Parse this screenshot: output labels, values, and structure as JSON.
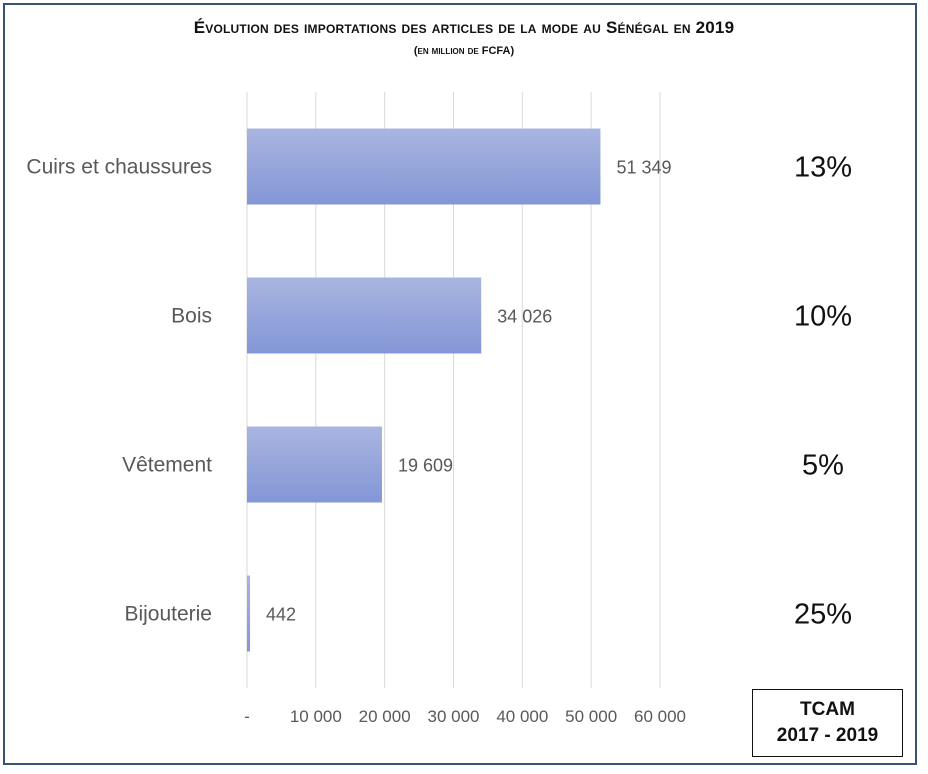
{
  "chart_data": {
    "type": "bar",
    "orientation": "horizontal",
    "title": "Évolution des importations des articles de la mode au Sénégal en 2019",
    "subtitle": "(en million de FCFA)",
    "categories": [
      "Cuirs et chaussures",
      "Bois",
      "Vêtement",
      "Bijouterie"
    ],
    "values": [
      51349,
      34026,
      19609,
      442
    ],
    "value_labels": [
      "51 349",
      "34 026",
      "19 609",
      "442"
    ],
    "xlim": [
      0,
      60000
    ],
    "x_ticks": [
      0,
      10000,
      20000,
      30000,
      40000,
      50000,
      60000
    ],
    "x_tick_labels": [
      "-",
      "10 000",
      "20 000",
      "30 000",
      "40 000",
      "50 000",
      "60 000"
    ],
    "grid": true,
    "bar_color_top": "#a9b5e0",
    "bar_color_bottom": "#8396d6",
    "tcam": {
      "labels": [
        "13%",
        "10%",
        "5%",
        "25%"
      ],
      "title_line1": "TCAM",
      "title_line2": "2017 - 2019"
    }
  }
}
